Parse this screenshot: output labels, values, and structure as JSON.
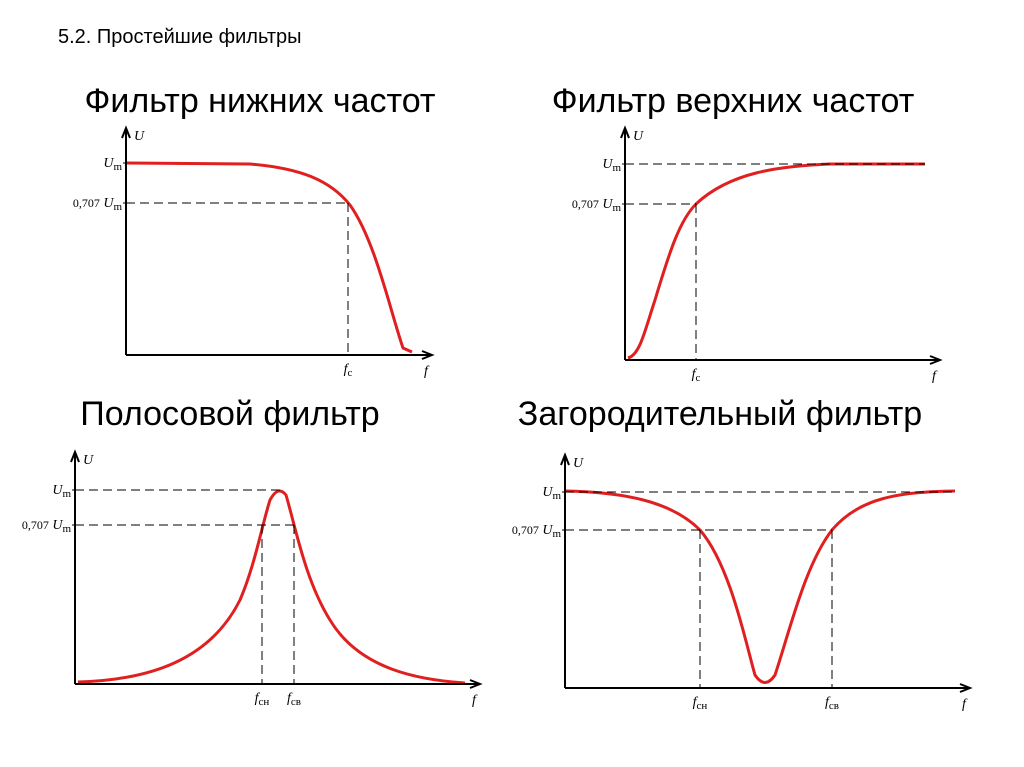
{
  "header": {
    "title": "5.2. Простейшие фильтры"
  },
  "panels": [
    {
      "title": "Фильтр нижних частот",
      "y_axis": "U",
      "x_axis": "f",
      "y_labels": [
        {
          "symbol": "U",
          "sub": "m"
        },
        {
          "prefix": "0,707",
          "symbol": "U",
          "sub": "m"
        }
      ],
      "x_labels": [
        {
          "symbol": "f",
          "sub": "c"
        }
      ]
    },
    {
      "title": "Фильтр верхних частот",
      "y_axis": "U",
      "x_axis": "f",
      "y_labels": [
        {
          "symbol": "U",
          "sub": "m"
        },
        {
          "prefix": "0,707",
          "symbol": "U",
          "sub": "m"
        }
      ],
      "x_labels": [
        {
          "symbol": "f",
          "sub": "c"
        }
      ]
    },
    {
      "title": "Полосовой фильтр",
      "y_axis": "U",
      "x_axis": "f",
      "y_labels": [
        {
          "symbol": "U",
          "sub": "m"
        },
        {
          "prefix": "0,707",
          "symbol": "U",
          "sub": "m"
        }
      ],
      "x_labels": [
        {
          "symbol": "f",
          "sub": "сн"
        },
        {
          "symbol": "f",
          "sub": "св"
        }
      ]
    },
    {
      "title": "Загородительный фильтр",
      "y_axis": "U",
      "x_axis": "f",
      "y_labels": [
        {
          "symbol": "U",
          "sub": "m"
        },
        {
          "prefix": "0,707",
          "symbol": "U",
          "sub": "m"
        }
      ],
      "x_labels": [
        {
          "symbol": "f",
          "sub": "сн"
        },
        {
          "symbol": "f",
          "sub": "св"
        }
      ]
    }
  ]
}
